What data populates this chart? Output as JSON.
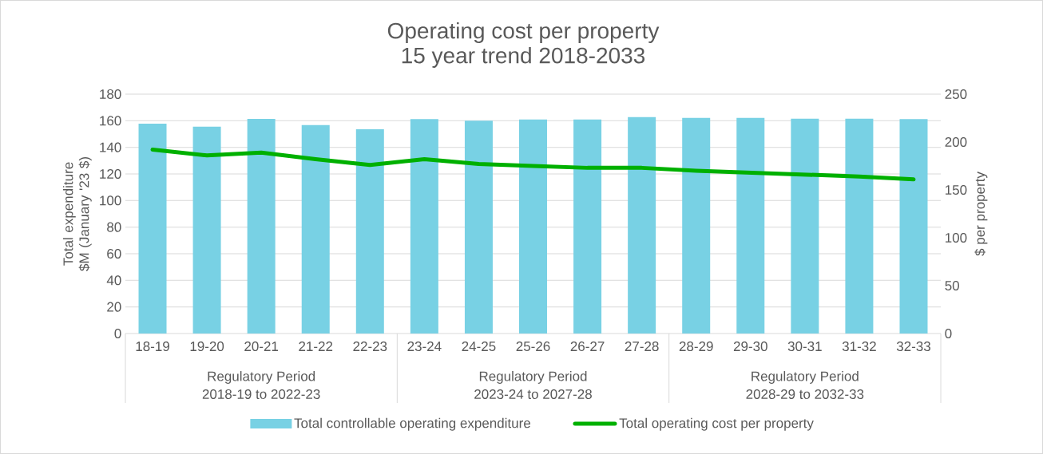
{
  "chart_data": {
    "type": "bar",
    "title": "Operating cost per property",
    "subtitle": "15 year trend 2018-2033",
    "ylabel": "Total expenditure $M (January '23 $)",
    "y2label": "$ per property",
    "categories": [
      "18-19",
      "19-20",
      "20-21",
      "21-22",
      "22-23",
      "23-24",
      "24-25",
      "25-26",
      "26-27",
      "27-28",
      "28-29",
      "29-30",
      "30-31",
      "31-32",
      "32-33"
    ],
    "series": [
      {
        "name": "Total controllable operating expenditure",
        "color": "#78d1e4",
        "values": [
          157.8,
          155.6,
          161.4,
          156.8,
          153.6,
          161.2,
          160,
          161,
          161,
          162.7,
          162.2,
          162.2,
          161.6,
          161.6,
          161.2
        ]
      },
      {
        "name": "Total operating cost per property",
        "type": "line",
        "axis": "y2",
        "color": "#00b000",
        "values": [
          192,
          186,
          189,
          182,
          176,
          182,
          177,
          175,
          173,
          173,
          170,
          168,
          166,
          164,
          161
        ]
      }
    ],
    "ylim": [
      0,
      180
    ],
    "yticks": [
      0,
      20,
      40,
      60,
      80,
      100,
      120,
      140,
      160,
      180
    ],
    "y2lim": [
      0,
      250
    ],
    "y2ticks": [
      0,
      50,
      100,
      150,
      200,
      250
    ],
    "annotations": [
      "Regulatory Period",
      "2018-19 to 2022-23",
      "Regulatory Period",
      "2023-24 to 2027-28",
      "Regulatory Period",
      "2028-29 to 2032-33"
    ],
    "grid": "y",
    "legend": "bottom",
    "marker": "none",
    "line_style": "solid"
  }
}
